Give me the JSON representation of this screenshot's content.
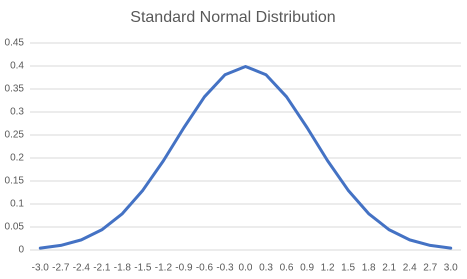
{
  "chart_data": {
    "type": "line",
    "title": "Standard Normal Distribution",
    "categories": [
      "-3.0",
      "-2.7",
      "-2.4",
      "-2.1",
      "-1.8",
      "-1.5",
      "-1.2",
      "-0.9",
      "-0.6",
      "-0.3",
      "0.0",
      "0.3",
      "0.6",
      "0.9",
      "1.2",
      "1.5",
      "1.8",
      "2.1",
      "2.4",
      "2.7",
      "3.0"
    ],
    "values": [
      0.004,
      0.01,
      0.022,
      0.044,
      0.079,
      0.13,
      0.194,
      0.266,
      0.333,
      0.381,
      0.399,
      0.381,
      0.333,
      0.266,
      0.194,
      0.13,
      0.079,
      0.044,
      0.022,
      0.01,
      0.004
    ],
    "color": "#4472c4",
    "ylim": [
      0,
      0.45
    ],
    "yticks": [
      0,
      0.05,
      0.1,
      0.15,
      0.2,
      0.25,
      0.3,
      0.35,
      0.4,
      0.45
    ],
    "grid": true
  }
}
